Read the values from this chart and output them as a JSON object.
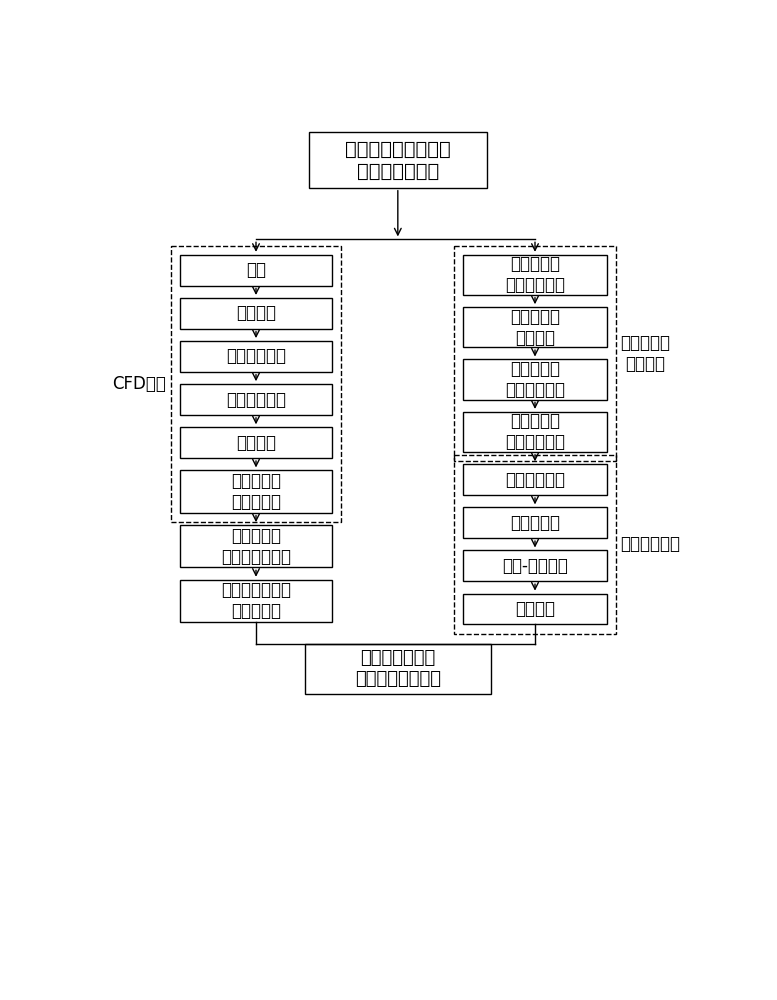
{
  "title": "安全壳环形空间压力\n限值的计算流程",
  "bottom_box": "安全壳环形空间\n压力设计限值确定",
  "left_label": "CFD模型",
  "right_label_top": "放射性物质\n输运模型",
  "right_label_bottom": "水力计算模型",
  "left_boxes": [
    "建模",
    "网格划分",
    "初始条件设置",
    "模型参数设置",
    "数值模拟",
    "安全壳外壁\n压力值提取",
    "安全壳外壁\n平均压力值计算",
    "确定安全壳外壁\n压力最小值"
  ],
  "left_heights": [
    40,
    40,
    40,
    40,
    40,
    55,
    55,
    55
  ],
  "right_boxes_top": [
    "放射性物质\n输运方程建立",
    "放射性物质\n浓度计算",
    "放射性物质\n扩散通量计算",
    "放射性物质\n对流通量计算"
  ],
  "right_boxes_bottom": [
    "沿程阻力计算",
    "总阻力计算",
    "流速-压差关系",
    "压差限值"
  ],
  "bg_color": "#ffffff",
  "box_color": "#ffffff",
  "box_edge_color": "#000000",
  "arrow_color": "#000000",
  "text_color": "#000000",
  "font_size": 12,
  "title_font_size": 14
}
